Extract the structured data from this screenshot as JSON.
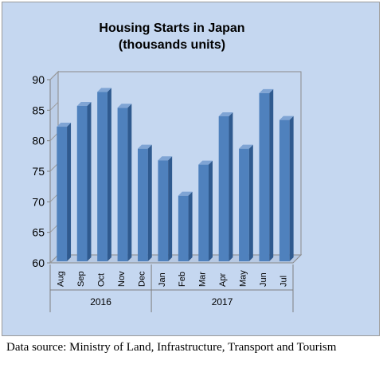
{
  "source_note": "Data source: Ministry of Land, Infrastructure, Transport and Tourism",
  "chart_data": {
    "type": "bar",
    "title_lines": [
      "Housing Starts in Japan",
      "(thousands units)"
    ],
    "categories": [
      "Aug",
      "Sep",
      "Oct",
      "Nov",
      "Dec",
      "Jan",
      "Feb",
      "Mar",
      "Apr",
      "May",
      "Jun",
      "Jul"
    ],
    "values": [
      82.3,
      85.7,
      88.0,
      85.4,
      78.7,
      76.8,
      71.0,
      76.1,
      84.0,
      78.7,
      87.8,
      83.4
    ],
    "ylim": [
      60,
      90
    ],
    "yticks": [
      "60",
      "65",
      "70",
      "75",
      "80",
      "85",
      "90"
    ],
    "year_groups": [
      {
        "label": "2016",
        "count": 5
      },
      {
        "label": "2017",
        "count": 7
      }
    ],
    "grid": false,
    "bar_color": "#4f81bd"
  }
}
